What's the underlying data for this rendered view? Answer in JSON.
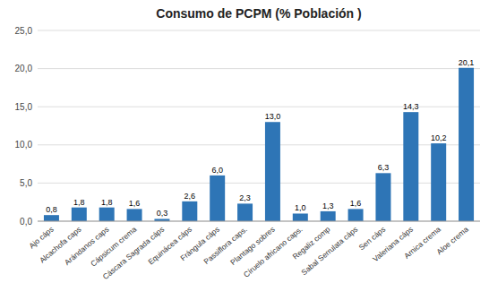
{
  "chart_data": {
    "type": "bar",
    "title": "Consumo de PCPM (% Población )",
    "categories": [
      "Ajo cáps",
      "Alcachofa caps",
      "Arándanos caps",
      "Cápsicum crema",
      "Cáscara Sagrada cáps",
      "Equinácea cáps",
      "Frángula cáps",
      "Passiflora caps.",
      "Plantago sobres",
      "Círuelo africano caps.",
      "Regaliz comp",
      "Sabal Serrulata cáps",
      "Sen cáps",
      "Valeriana cáps",
      "Arnica crema",
      "Aloe crema"
    ],
    "values": [
      0.8,
      1.8,
      1.8,
      1.6,
      0.3,
      2.6,
      6.0,
      2.3,
      13.0,
      1.0,
      1.3,
      1.6,
      6.3,
      14.3,
      10.2,
      20.1
    ],
    "value_labels": [
      "0,8",
      "1,8",
      "1,8",
      "1,6",
      "0,3",
      "2,6",
      "6,0",
      "2,3",
      "13,0",
      "1,0",
      "1,3",
      "1,6",
      "6,3",
      "14,3",
      "10,2",
      "20,1"
    ],
    "color": "#2E75B6",
    "ylim": [
      0,
      25
    ],
    "yticks": [
      {
        "value": 0.0,
        "label": "0,0"
      },
      {
        "value": 5.0,
        "label": "5,0"
      },
      {
        "value": 10.0,
        "label": "10,0"
      },
      {
        "value": 15.0,
        "label": "15,0"
      },
      {
        "value": 20.0,
        "label": "20,0"
      },
      {
        "value": 25.0,
        "label": "25,0"
      }
    ],
    "grid": true,
    "data_labels": true
  }
}
